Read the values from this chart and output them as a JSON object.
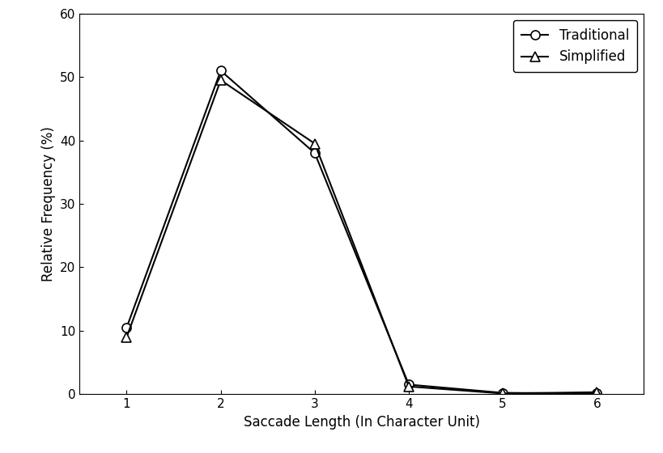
{
  "x": [
    1,
    2,
    3,
    4,
    5,
    6
  ],
  "traditional": [
    10.5,
    51.0,
    38.0,
    1.5,
    0.2,
    0.1
  ],
  "simplified": [
    9.0,
    49.5,
    39.5,
    1.2,
    0.1,
    0.3
  ],
  "xlabel": "Saccade Length (In Character Unit)",
  "ylabel": "Relative Frequency (%)",
  "xlim": [
    0.5,
    6.5
  ],
  "ylim": [
    0,
    60
  ],
  "yticks": [
    0,
    10,
    20,
    30,
    40,
    50,
    60
  ],
  "xticks": [
    1,
    2,
    3,
    4,
    5,
    6
  ],
  "legend_labels": [
    "Traditional",
    "Simplified"
  ],
  "line_color": "#000000",
  "bg_color": "#ffffff",
  "axis_fontsize": 12,
  "tick_fontsize": 11,
  "marker_size": 8,
  "linewidth": 1.5
}
